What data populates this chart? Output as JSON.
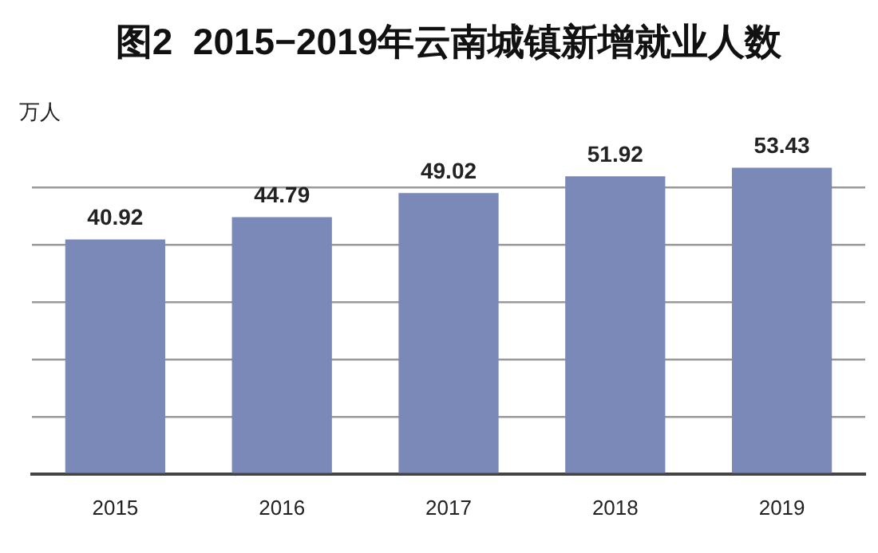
{
  "chart_data": {
    "type": "bar",
    "title": "图2  2015−2019年云南城镇新增就业人数",
    "ylabel": "万人",
    "categories": [
      "2015",
      "2016",
      "2017",
      "2018",
      "2019"
    ],
    "values": [
      40.92,
      44.79,
      49.02,
      51.92,
      53.43
    ],
    "color": "#7b89b9",
    "yticks": [
      {
        "value": 0,
        "label": null
      },
      {
        "value": 10,
        "label": null
      },
      {
        "value": 20,
        "label": null
      },
      {
        "value": 30,
        "label": null
      },
      {
        "value": 40,
        "label": null
      },
      {
        "value": 50,
        "label": null
      }
    ],
    "grid": "y",
    "data_labels": true,
    "tick_labels": "x"
  }
}
